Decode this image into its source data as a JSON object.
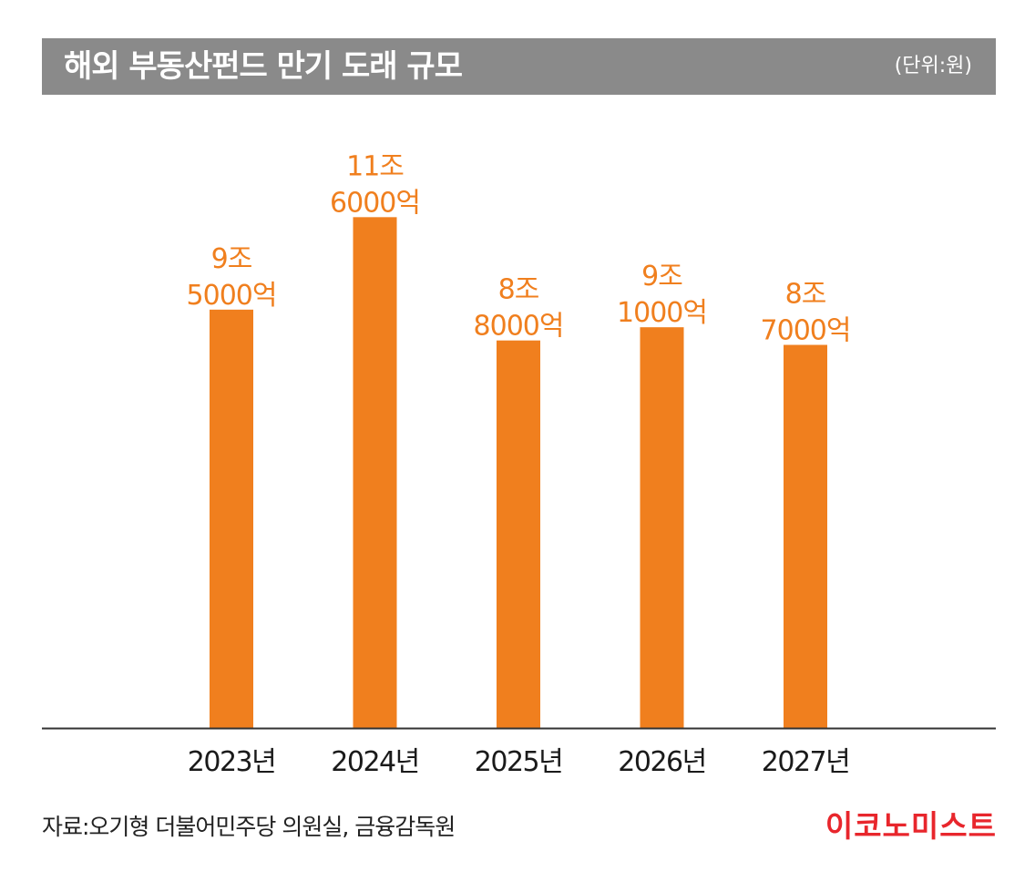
{
  "header": {
    "title": "해외 부동산펀드 만기 도래 규모",
    "unit": "(단위:원)"
  },
  "chart_data": {
    "type": "bar",
    "title": "해외 부동산펀드 만기 도래 규모",
    "unit": "원",
    "categories": [
      "2023년",
      "2024년",
      "2025년",
      "2026년",
      "2027년"
    ],
    "values": [
      95000,
      116000,
      88000,
      91000,
      87000
    ],
    "value_unit": "억원",
    "data_labels": [
      [
        "9조",
        "5000억"
      ],
      [
        "11조",
        "6000억"
      ],
      [
        "8조",
        "8000억"
      ],
      [
        "9조",
        "1000억"
      ],
      [
        "8조",
        "7000억"
      ]
    ],
    "ylim": [
      0,
      120000
    ],
    "grid": false,
    "bar_color": "#f07f1e",
    "label_color": "#f07f1e",
    "axis_color": "#333333"
  },
  "footer": {
    "source": "자료:오기형 더불어민주당 의원실, 금융감독원",
    "brand": "이코노미스트",
    "brand_color": "#e8262c"
  }
}
